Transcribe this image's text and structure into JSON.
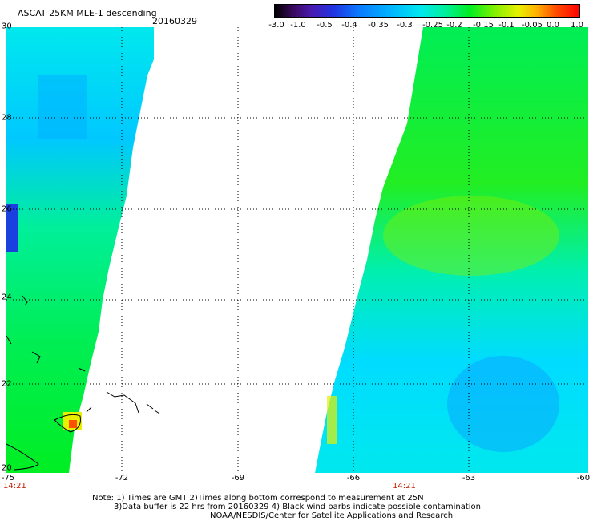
{
  "header": {
    "title": "ASCAT 25KM MLE-1 descending",
    "date": "20160329"
  },
  "colorbar": {
    "labels": [
      "-3.0",
      "-1.0",
      "-0.5",
      "-0.4",
      "-0.35",
      "-0.3",
      "-0.25",
      "-0.2",
      "-0.15",
      "-0.1",
      "-0.05",
      "0.0",
      "1.0"
    ],
    "colors": [
      "#000000",
      "#3a0a5e",
      "#4a1ab0",
      "#2233e0",
      "#0a7cff",
      "#00b4ff",
      "#00e8ee",
      "#00ef9a",
      "#00ee22",
      "#7ff000",
      "#e8f000",
      "#ffb000",
      "#ff0000"
    ]
  },
  "axes": {
    "lon_labels": [
      "-75",
      "-72",
      "-69",
      "-66",
      "-63",
      "-60"
    ],
    "lat_labels": [
      "30",
      "28",
      "26",
      "24",
      "22",
      "20"
    ]
  },
  "times": [
    "14:21",
    "14:21"
  ],
  "notes": [
    "Note: 1) Times are GMT 2)Times along bottom correspond to measurement at 25N",
    "3)Data buffer is 22 hrs from 20160329 4) Black wind barbs indicate possible contamination",
    "NOAA/NESDIS/Center for Satellite Applications and Research"
  ]
}
